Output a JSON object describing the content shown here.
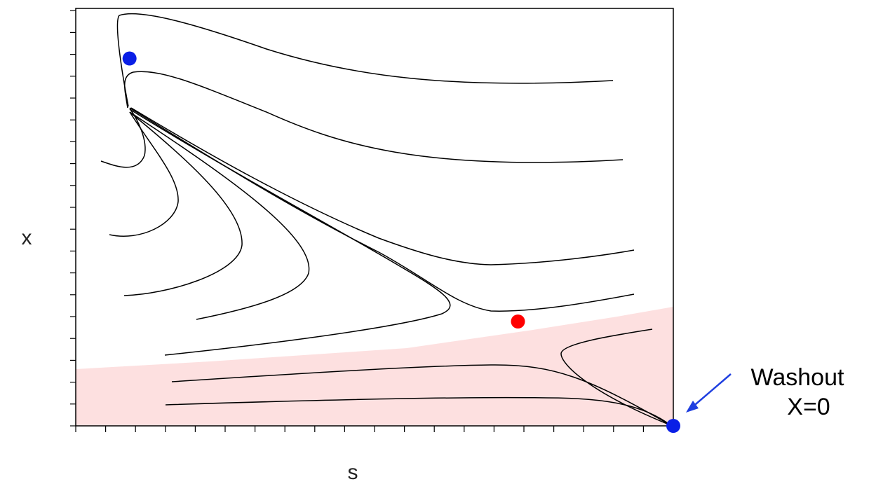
{
  "axes": {
    "x_label": "s",
    "y_label": "x"
  },
  "annotation": {
    "line1": "Washout",
    "line2": "X=0",
    "arrow_color": "#1f3fe0"
  },
  "colors": {
    "region": "#fde0e0",
    "stable_point": "#0a1fe6",
    "unstable_point": "#ff0000",
    "trajectory": "#000000"
  },
  "points": [
    {
      "name": "stable-equilibrium",
      "s": 0.09,
      "x": 0.88
    },
    {
      "name": "unstable-equilibrium",
      "s": 0.74,
      "x": 0.25
    },
    {
      "name": "washout-equilibrium",
      "s": 1.0,
      "x": 0.0
    }
  ]
}
